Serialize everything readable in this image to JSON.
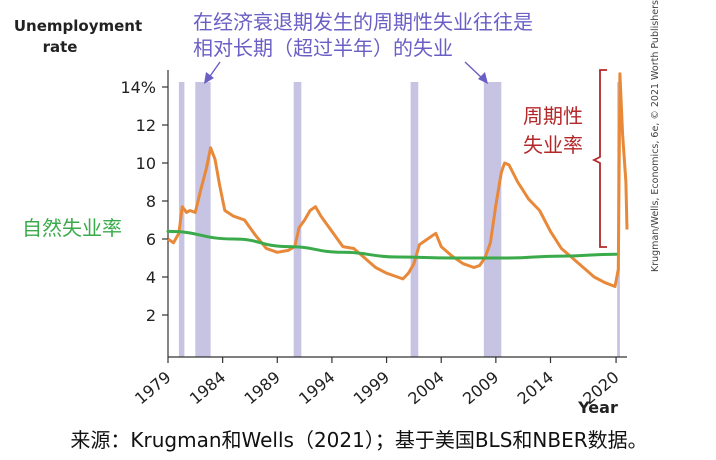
{
  "chart_data": {
    "type": "line",
    "ylabel": "Unemployment\nrate",
    "xlabel": "Year",
    "y_ticks": [
      "2",
      "4",
      "6",
      "8",
      "10",
      "12",
      "14%"
    ],
    "x_ticks": [
      "1979",
      "1984",
      "1989",
      "1994",
      "1999",
      "2004",
      "2009",
      "2014",
      "2020"
    ],
    "ylim": [
      0,
      15
    ],
    "xlim": [
      1979,
      2021
    ],
    "series": [
      {
        "name": "周期性失业率",
        "color": "#e8893a",
        "x": [
          1979,
          1979.5,
          1980,
          1980.3,
          1980.7,
          1981,
          1981.5,
          1982,
          1982.5,
          1982.9,
          1983.3,
          1983.7,
          1984.2,
          1985,
          1986,
          1987,
          1988,
          1989,
          1990,
          1990.6,
          1991,
          1991.5,
          1992,
          1992.5,
          1993,
          1994,
          1995,
          1996,
          1997,
          1998,
          1999,
          2000,
          2000.5,
          2001,
          2001.5,
          2002,
          2002.5,
          2003,
          2003.5,
          2004,
          2005,
          2006,
          2007,
          2007.5,
          2008,
          2008.5,
          2009,
          2009.5,
          2009.8,
          2010.2,
          2011,
          2012,
          2013,
          2014,
          2015,
          2016,
          2017,
          2018,
          2019,
          2019.9,
          2020.2,
          2020.35,
          2020.6,
          2020.9,
          2021
        ],
        "values": [
          6.0,
          5.8,
          6.3,
          7.7,
          7.4,
          7.5,
          7.4,
          8.6,
          9.7,
          10.8,
          10.2,
          8.9,
          7.5,
          7.2,
          7.0,
          6.2,
          5.5,
          5.3,
          5.4,
          5.6,
          6.6,
          7.0,
          7.5,
          7.7,
          7.2,
          6.4,
          5.6,
          5.5,
          5.0,
          4.5,
          4.2,
          4.0,
          3.9,
          4.2,
          4.7,
          5.7,
          5.9,
          6.1,
          6.3,
          5.6,
          5.1,
          4.7,
          4.5,
          4.6,
          5.0,
          5.8,
          7.8,
          9.5,
          10.0,
          9.9,
          9.0,
          8.1,
          7.5,
          6.4,
          5.5,
          5.0,
          4.5,
          4.0,
          3.7,
          3.5,
          4.4,
          14.7,
          11.5,
          9.0,
          6.5
        ]
      },
      {
        "name": "自然失业率",
        "color": "#3aaa4a",
        "x": [
          1979,
          1985,
          1990,
          1995,
          2000,
          2005,
          2010,
          2015,
          2020
        ],
        "values": [
          6.4,
          6.0,
          5.6,
          5.3,
          5.05,
          5.0,
          5.0,
          5.1,
          5.2
        ]
      }
    ],
    "recessions": [
      [
        1980.0,
        1980.5
      ],
      [
        1981.5,
        1982.9
      ],
      [
        1990.5,
        1991.2
      ],
      [
        2001.2,
        2001.9
      ],
      [
        2007.9,
        2009.5
      ],
      [
        2020.1,
        2020.35
      ]
    ],
    "recession_color": "#c7c3e3",
    "annotations": {
      "top_note_line1": "在经济衰退期发生的周期性失业往往是",
      "top_note_line2": "相对长期（超过半年）的失业",
      "top_note_color": "#6a5fc4",
      "cyclical_label_line1": "周期性",
      "cyclical_label_line2": "失业率",
      "cyclical_label_color": "#b3282a",
      "natural_label": "自然失业率",
      "natural_label_color": "#3aaa4a"
    },
    "credit": "Krugman/Wells, Economics, 6e, © 2021 Worth Publishers"
  },
  "source_note": "来源：Krugman和Wells（2021）；基于美国BLS和NBER数据。"
}
